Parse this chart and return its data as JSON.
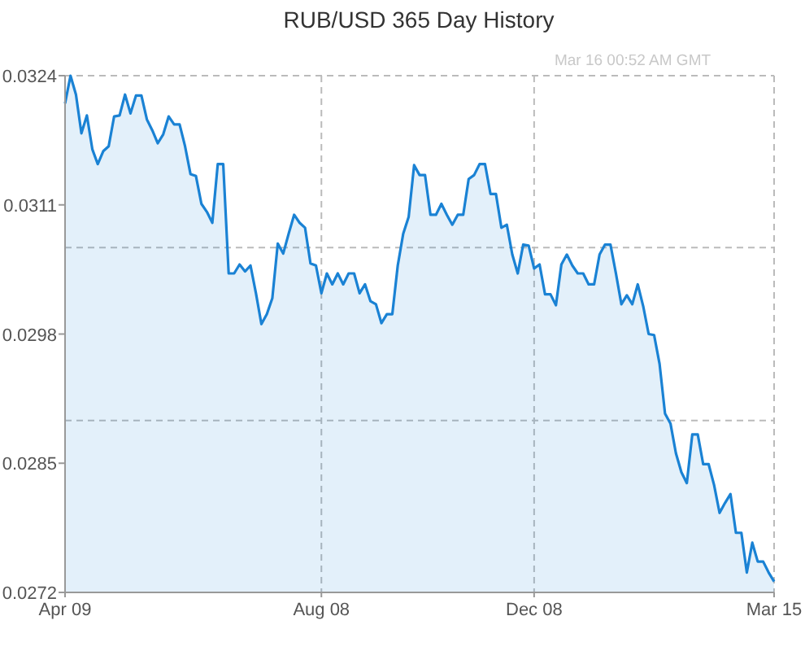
{
  "chart_data": {
    "type": "area",
    "title": "RUB/USD  365 Day History",
    "subtitle": "Mar 16  00:52 AM GMT",
    "categories": [
      "Apr 09",
      null,
      null,
      null,
      null,
      null,
      null,
      null,
      null,
      null,
      null,
      null,
      null,
      null,
      null,
      null,
      null,
      null,
      null,
      null,
      null,
      null,
      null,
      null,
      null,
      null,
      null,
      null,
      null,
      null,
      null,
      null,
      null,
      null,
      null,
      null,
      null,
      null,
      null,
      null,
      null,
      null,
      null,
      null,
      null,
      null,
      null,
      "Aug 08",
      null,
      null,
      null,
      null,
      null,
      null,
      null,
      null,
      null,
      null,
      null,
      null,
      null,
      null,
      null,
      null,
      null,
      null,
      null,
      null,
      null,
      null,
      null,
      null,
      null,
      null,
      null,
      null,
      null,
      null,
      null,
      null,
      null,
      null,
      null,
      null,
      null,
      null,
      "Dec 08",
      null,
      null,
      null,
      null,
      null,
      null,
      null,
      null,
      null,
      null,
      null,
      null,
      null,
      null,
      null,
      null,
      null,
      null,
      null,
      null,
      null,
      null,
      null,
      null,
      null,
      null,
      null,
      null,
      null,
      null,
      null,
      null,
      null,
      null,
      null,
      null,
      null,
      null,
      null,
      null,
      null,
      null,
      null,
      "Mar 15"
    ],
    "series": [
      {
        "color": "#1a82d4",
        "values": [
          0.03212,
          0.0324,
          0.03221,
          0.03182,
          0.032,
          0.03166,
          0.03151,
          0.03164,
          0.03169,
          0.03199,
          0.032,
          0.03221,
          0.03202,
          0.0322,
          0.0322,
          0.03196,
          0.03185,
          0.03172,
          0.03181,
          0.03199,
          0.03191,
          0.03191,
          0.03169,
          0.03141,
          0.03139,
          0.03111,
          0.03103,
          0.03092,
          0.03151,
          0.03151,
          0.03041,
          0.03041,
          0.0305,
          0.03043,
          0.03049,
          0.03021,
          0.0299,
          0.03,
          0.03016,
          0.03071,
          0.03061,
          0.03081,
          0.031,
          0.03092,
          0.03087,
          0.03051,
          0.03049,
          0.03021,
          0.03041,
          0.0303,
          0.03041,
          0.0303,
          0.03041,
          0.03041,
          0.03021,
          0.0303,
          0.03013,
          0.0301,
          0.02991,
          0.03,
          0.03,
          0.03049,
          0.03081,
          0.03098,
          0.0315,
          0.0314,
          0.0314,
          0.031,
          0.031,
          0.03111,
          0.031,
          0.0309,
          0.031,
          0.031,
          0.03136,
          0.0314,
          0.03151,
          0.03151,
          0.03121,
          0.03121,
          0.03087,
          0.0309,
          0.0306,
          0.03041,
          0.0307,
          0.03069,
          0.03046,
          0.0305,
          0.0302,
          0.0302,
          0.03009,
          0.0305,
          0.0306,
          0.03049,
          0.03041,
          0.03041,
          0.0303,
          0.0303,
          0.0306,
          0.0307,
          0.0307,
          0.03041,
          0.0301,
          0.03019,
          0.0301,
          0.0303,
          0.03008,
          0.0298,
          0.02979,
          0.0295,
          0.029,
          0.0289,
          0.0286,
          0.02841,
          0.0283,
          0.02879,
          0.02879,
          0.02849,
          0.02849,
          0.02828,
          0.028,
          0.0281,
          0.02819,
          0.0278,
          0.0278,
          0.0274,
          0.0277,
          0.02751,
          0.02751,
          0.0274,
          0.02731
        ]
      }
    ],
    "ylim": [
      0.0272,
      0.0324
    ],
    "yticks": [
      {
        "value": 0.0272,
        "label": "0.0272"
      },
      {
        "value": 0.0285,
        "label": "0.0285"
      },
      {
        "value": 0.0298,
        "label": "0.0298"
      },
      {
        "value": 0.0311,
        "label": "0.0311"
      },
      {
        "value": 0.0324,
        "label": "0.0324"
      }
    ],
    "ref_lines": [
      {
        "axis": "y",
        "value": 0.03067,
        "color": "#bbbbbb",
        "line_style": "dashed"
      },
      {
        "axis": "y",
        "value": 0.02893,
        "color": "#bbbbbb",
        "line_style": "dashed"
      }
    ],
    "grid": "x"
  }
}
